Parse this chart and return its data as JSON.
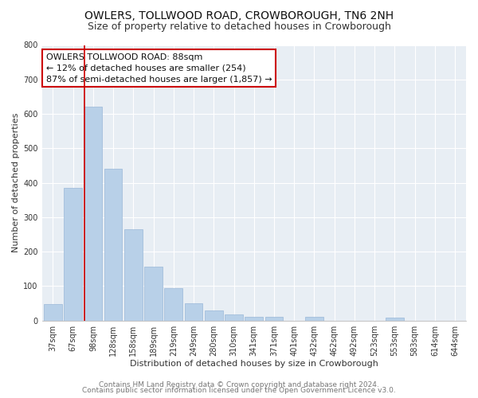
{
  "title": "OWLERS, TOLLWOOD ROAD, CROWBOROUGH, TN6 2NH",
  "subtitle": "Size of property relative to detached houses in Crowborough",
  "xlabel": "Distribution of detached houses by size in Crowborough",
  "ylabel": "Number of detached properties",
  "categories": [
    "37sqm",
    "67sqm",
    "98sqm",
    "128sqm",
    "158sqm",
    "189sqm",
    "219sqm",
    "249sqm",
    "280sqm",
    "310sqm",
    "341sqm",
    "371sqm",
    "401sqm",
    "432sqm",
    "462sqm",
    "492sqm",
    "523sqm",
    "553sqm",
    "583sqm",
    "614sqm",
    "644sqm"
  ],
  "values": [
    48,
    385,
    622,
    440,
    265,
    157,
    95,
    50,
    30,
    17,
    11,
    11,
    0,
    12,
    0,
    0,
    0,
    8,
    0,
    0,
    0
  ],
  "bar_color": "#b8d0e8",
  "bar_edge_color": "#9ab8d8",
  "marker_bar_index": 2,
  "marker_line_color": "#cc0000",
  "annotation_text_line1": "OWLERS TOLLWOOD ROAD: 88sqm",
  "annotation_text_line2": "← 12% of detached houses are smaller (254)",
  "annotation_text_line3": "87% of semi-detached houses are larger (1,857) →",
  "annotation_box_facecolor": "#ffffff",
  "annotation_box_edgecolor": "#cc0000",
  "ylim": [
    0,
    800
  ],
  "yticks": [
    0,
    100,
    200,
    300,
    400,
    500,
    600,
    700,
    800
  ],
  "footer_line1": "Contains HM Land Registry data © Crown copyright and database right 2024.",
  "footer_line2": "Contains public sector information licensed under the Open Government Licence v3.0.",
  "fig_bg_color": "#ffffff",
  "plot_bg_color": "#e8eef4",
  "grid_color": "#ffffff",
  "title_fontsize": 10,
  "subtitle_fontsize": 9,
  "axis_label_fontsize": 8,
  "tick_fontsize": 7,
  "annotation_fontsize": 8,
  "footer_fontsize": 6.5
}
